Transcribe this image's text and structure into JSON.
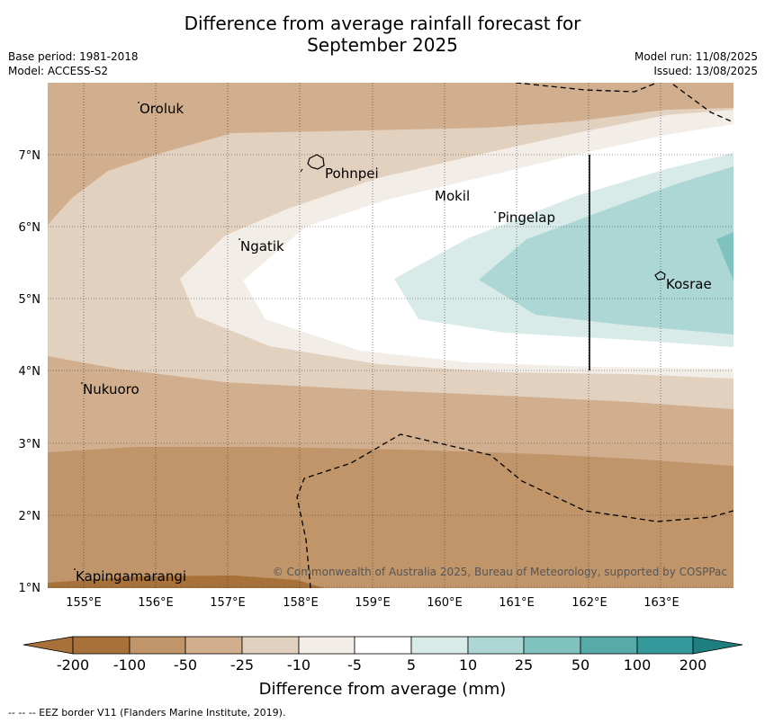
{
  "title_line1": "Difference from average rainfall forecast for",
  "title_line2": "September 2025",
  "meta_left": {
    "line1": "Base period: 1981-2018",
    "line2": "Model: ACCESS-S2"
  },
  "meta_right": {
    "line1": "Model run: 11/08/2025",
    "line2": "Issued: 13/08/2025"
  },
  "map": {
    "lon_ticks": [
      "155°E",
      "156°E",
      "157°E",
      "158°E",
      "159°E",
      "160°E",
      "161°E",
      "162°E",
      "163°E"
    ],
    "lat_ticks": [
      "7°N",
      "6°N",
      "5°N",
      "4°N",
      "3°N",
      "2°N",
      "1°N"
    ],
    "places": [
      "Oroluk",
      "Pohnpei",
      "Mokil",
      "Pingelap",
      "Ngatik",
      "Kosrae",
      "Nukuoro",
      "Kapingamarangi"
    ],
    "copyright": "© Commonwealth of Australia 2025, Bureau of Meteorology, supported by COSPPac"
  },
  "colorbar": {
    "labels": [
      "-200",
      "-100",
      "-50",
      "-25",
      "-10",
      "-5",
      "5",
      "10",
      "25",
      "50",
      "100",
      "200"
    ],
    "colors": [
      "#a87139",
      "#c0956a",
      "#d0ae8e",
      "#e3d1bf",
      "#f2ede6",
      "#ffffff",
      "#d8ebe9",
      "#acd7d5",
      "#80c2bf",
      "#56aba8",
      "#34999a"
    ],
    "title": "Difference from average (mm)"
  },
  "footer": "--  --  -- EEZ border V11 (Flanders Marine Institute, 2019)."
}
